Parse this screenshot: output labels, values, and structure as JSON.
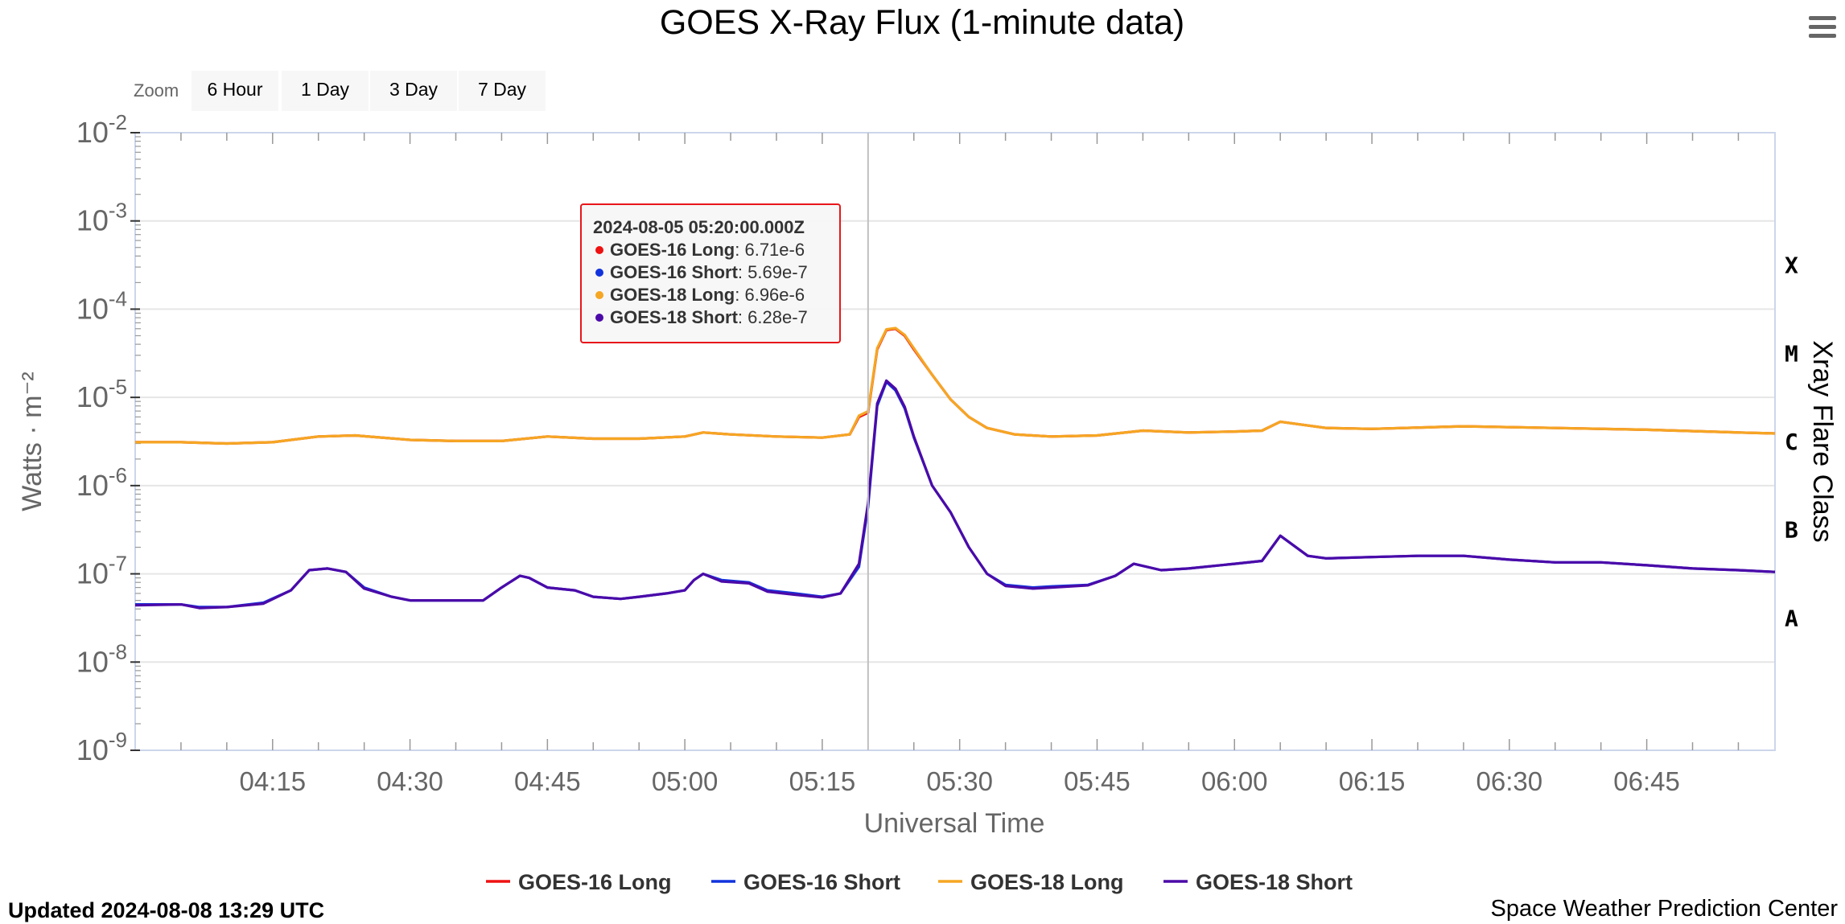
{
  "chart_data": {
    "type": "line",
    "title": "GOES X-Ray Flux (1-minute data)",
    "xlabel": "Universal Time",
    "ylabel": "Watts · m⁻²",
    "y2label": "Xray Flare Class",
    "yscale": "log",
    "ylim": [
      1e-09,
      0.01
    ],
    "xlim": [
      "04:00",
      "06:59"
    ],
    "x_ticks": [
      "04:15",
      "04:30",
      "04:45",
      "05:00",
      "05:15",
      "05:30",
      "05:45",
      "06:00",
      "06:15",
      "06:30",
      "06:45"
    ],
    "y_ticks": [
      {
        "base": "10",
        "exp": "-2"
      },
      {
        "base": "10",
        "exp": "-3"
      },
      {
        "base": "10",
        "exp": "-4"
      },
      {
        "base": "10",
        "exp": "-5"
      },
      {
        "base": "10",
        "exp": "-6"
      },
      {
        "base": "10",
        "exp": "-7"
      },
      {
        "base": "10",
        "exp": "-8"
      },
      {
        "base": "10",
        "exp": "-9"
      }
    ],
    "flare_classes": [
      {
        "label": "X",
        "value": 0.0001
      },
      {
        "label": "M",
        "value": 1e-05
      },
      {
        "label": "C",
        "value": 1e-06
      },
      {
        "label": "B",
        "value": 1e-07
      },
      {
        "label": "A",
        "value": 1e-08
      }
    ],
    "grid": true,
    "legend_position": "bottom-center",
    "series": [
      {
        "name": "GOES-16 Long",
        "color": "#ee1111",
        "points": [
          [
            "04:00",
            3.1e-06
          ],
          [
            "04:05",
            3.1e-06
          ],
          [
            "04:10",
            3e-06
          ],
          [
            "04:15",
            3.1e-06
          ],
          [
            "04:20",
            3.6e-06
          ],
          [
            "04:24",
            3.7e-06
          ],
          [
            "04:30",
            3.3e-06
          ],
          [
            "04:35",
            3.2e-06
          ],
          [
            "04:40",
            3.2e-06
          ],
          [
            "04:45",
            3.6e-06
          ],
          [
            "04:50",
            3.4e-06
          ],
          [
            "04:55",
            3.4e-06
          ],
          [
            "05:00",
            3.6e-06
          ],
          [
            "05:02",
            4e-06
          ],
          [
            "05:05",
            3.8e-06
          ],
          [
            "05:10",
            3.6e-06
          ],
          [
            "05:15",
            3.5e-06
          ],
          [
            "05:18",
            3.8e-06
          ],
          [
            "05:19",
            6e-06
          ],
          [
            "05:20",
            6.71e-06
          ],
          [
            "05:21",
            3.5e-05
          ],
          [
            "05:22",
            5.8e-05
          ],
          [
            "05:23",
            6e-05
          ],
          [
            "05:24",
            5e-05
          ],
          [
            "05:25",
            3.5e-05
          ],
          [
            "05:27",
            1.8e-05
          ],
          [
            "05:29",
            9.5e-06
          ],
          [
            "05:31",
            6e-06
          ],
          [
            "05:33",
            4.5e-06
          ],
          [
            "05:36",
            3.8e-06
          ],
          [
            "05:40",
            3.6e-06
          ],
          [
            "05:45",
            3.7e-06
          ],
          [
            "05:50",
            4.2e-06
          ],
          [
            "05:55",
            4e-06
          ],
          [
            "06:00",
            4.1e-06
          ],
          [
            "06:03",
            4.2e-06
          ],
          [
            "06:05",
            5.3e-06
          ],
          [
            "06:10",
            4.5e-06
          ],
          [
            "06:15",
            4.4e-06
          ],
          [
            "06:25",
            4.7e-06
          ],
          [
            "06:35",
            4.5e-06
          ],
          [
            "06:45",
            4.3e-06
          ],
          [
            "06:55",
            4e-06
          ],
          [
            "06:59",
            3.9e-06
          ]
        ]
      },
      {
        "name": "GOES-16 Short",
        "color": "#1133dd",
        "points": [
          [
            "04:00",
            4.5e-08
          ],
          [
            "04:05",
            4.5e-08
          ],
          [
            "04:07",
            4.2e-08
          ],
          [
            "04:10",
            4.2e-08
          ],
          [
            "04:14",
            4.7e-08
          ],
          [
            "04:17",
            6.5e-08
          ],
          [
            "04:19",
            1.1e-07
          ],
          [
            "04:21",
            1.15e-07
          ],
          [
            "04:23",
            1.05e-07
          ],
          [
            "04:25",
            7e-08
          ],
          [
            "04:28",
            5.5e-08
          ],
          [
            "04:30",
            5e-08
          ],
          [
            "04:35",
            5e-08
          ],
          [
            "04:38",
            5e-08
          ],
          [
            "04:40",
            7e-08
          ],
          [
            "04:42",
            9.5e-08
          ],
          [
            "04:43",
            9e-08
          ],
          [
            "04:45",
            7e-08
          ],
          [
            "04:48",
            6.5e-08
          ],
          [
            "04:50",
            5.5e-08
          ],
          [
            "04:53",
            5.2e-08
          ],
          [
            "04:55",
            5.5e-08
          ],
          [
            "04:58",
            6e-08
          ],
          [
            "05:00",
            6.5e-08
          ],
          [
            "05:01",
            8.5e-08
          ],
          [
            "05:02",
            1e-07
          ],
          [
            "05:04",
            8.5e-08
          ],
          [
            "05:07",
            8e-08
          ],
          [
            "05:09",
            6.5e-08
          ],
          [
            "05:12",
            6e-08
          ],
          [
            "05:15",
            5.5e-08
          ],
          [
            "05:17",
            6e-08
          ],
          [
            "05:19",
            1.2e-07
          ],
          [
            "05:20",
            5.69e-07
          ],
          [
            "05:21",
            8e-06
          ],
          [
            "05:22",
            1.5e-05
          ],
          [
            "05:23",
            1.2e-05
          ],
          [
            "05:24",
            7.5e-06
          ],
          [
            "05:25",
            3.5e-06
          ],
          [
            "05:27",
            1e-06
          ],
          [
            "05:29",
            5e-07
          ],
          [
            "05:31",
            2e-07
          ],
          [
            "05:33",
            1e-07
          ],
          [
            "05:35",
            7.5e-08
          ],
          [
            "05:38",
            7e-08
          ],
          [
            "05:40",
            7.2e-08
          ],
          [
            "05:44",
            7.5e-08
          ],
          [
            "05:47",
            9.5e-08
          ],
          [
            "05:49",
            1.3e-07
          ],
          [
            "05:52",
            1.1e-07
          ],
          [
            "05:55",
            1.15e-07
          ],
          [
            "06:00",
            1.3e-07
          ],
          [
            "06:03",
            1.4e-07
          ],
          [
            "06:05",
            2.7e-07
          ],
          [
            "06:08",
            1.6e-07
          ],
          [
            "06:10",
            1.5e-07
          ],
          [
            "06:15",
            1.55e-07
          ],
          [
            "06:20",
            1.6e-07
          ],
          [
            "06:25",
            1.6e-07
          ],
          [
            "06:30",
            1.45e-07
          ],
          [
            "06:35",
            1.35e-07
          ],
          [
            "06:40",
            1.35e-07
          ],
          [
            "06:45",
            1.25e-07
          ],
          [
            "06:50",
            1.15e-07
          ],
          [
            "06:55",
            1.1e-07
          ],
          [
            "06:59",
            1.05e-07
          ]
        ]
      },
      {
        "name": "GOES-18 Long",
        "color": "#f5a623",
        "points": [
          [
            "04:00",
            3.1e-06
          ],
          [
            "04:05",
            3.1e-06
          ],
          [
            "04:10",
            3e-06
          ],
          [
            "04:15",
            3.1e-06
          ],
          [
            "04:20",
            3.6e-06
          ],
          [
            "04:24",
            3.7e-06
          ],
          [
            "04:30",
            3.3e-06
          ],
          [
            "04:35",
            3.2e-06
          ],
          [
            "04:40",
            3.2e-06
          ],
          [
            "04:45",
            3.6e-06
          ],
          [
            "04:50",
            3.4e-06
          ],
          [
            "04:55",
            3.4e-06
          ],
          [
            "05:00",
            3.6e-06
          ],
          [
            "05:02",
            4e-06
          ],
          [
            "05:05",
            3.8e-06
          ],
          [
            "05:10",
            3.6e-06
          ],
          [
            "05:15",
            3.5e-06
          ],
          [
            "05:18",
            3.8e-06
          ],
          [
            "05:19",
            6.2e-06
          ],
          [
            "05:20",
            6.96e-06
          ],
          [
            "05:21",
            3.6e-05
          ],
          [
            "05:22",
            5.9e-05
          ],
          [
            "05:23",
            6.1e-05
          ],
          [
            "05:24",
            5.1e-05
          ],
          [
            "05:25",
            3.6e-05
          ],
          [
            "05:27",
            1.8e-05
          ],
          [
            "05:29",
            9.5e-06
          ],
          [
            "05:31",
            6e-06
          ],
          [
            "05:33",
            4.5e-06
          ],
          [
            "05:36",
            3.8e-06
          ],
          [
            "05:40",
            3.6e-06
          ],
          [
            "05:45",
            3.7e-06
          ],
          [
            "05:50",
            4.2e-06
          ],
          [
            "05:55",
            4e-06
          ],
          [
            "06:00",
            4.1e-06
          ],
          [
            "06:03",
            4.2e-06
          ],
          [
            "06:05",
            5.3e-06
          ],
          [
            "06:10",
            4.5e-06
          ],
          [
            "06:15",
            4.4e-06
          ],
          [
            "06:25",
            4.7e-06
          ],
          [
            "06:35",
            4.5e-06
          ],
          [
            "06:45",
            4.3e-06
          ],
          [
            "06:55",
            4e-06
          ],
          [
            "06:59",
            3.9e-06
          ]
        ]
      },
      {
        "name": "GOES-18 Short",
        "color": "#4b0aa8",
        "points": [
          [
            "04:00",
            4.4e-08
          ],
          [
            "04:05",
            4.5e-08
          ],
          [
            "04:07",
            4.1e-08
          ],
          [
            "04:10",
            4.2e-08
          ],
          [
            "04:14",
            4.6e-08
          ],
          [
            "04:17",
            6.5e-08
          ],
          [
            "04:19",
            1.1e-07
          ],
          [
            "04:21",
            1.15e-07
          ],
          [
            "04:23",
            1.05e-07
          ],
          [
            "04:25",
            6.8e-08
          ],
          [
            "04:28",
            5.5e-08
          ],
          [
            "04:30",
            5e-08
          ],
          [
            "04:35",
            5e-08
          ],
          [
            "04:38",
            5e-08
          ],
          [
            "04:40",
            7e-08
          ],
          [
            "04:42",
            9.5e-08
          ],
          [
            "04:43",
            9e-08
          ],
          [
            "04:45",
            7e-08
          ],
          [
            "04:48",
            6.5e-08
          ],
          [
            "04:50",
            5.5e-08
          ],
          [
            "04:53",
            5.2e-08
          ],
          [
            "04:55",
            5.5e-08
          ],
          [
            "04:58",
            6e-08
          ],
          [
            "05:00",
            6.5e-08
          ],
          [
            "05:01",
            8.5e-08
          ],
          [
            "05:02",
            1e-07
          ],
          [
            "05:04",
            8.2e-08
          ],
          [
            "05:07",
            7.8e-08
          ],
          [
            "05:09",
            6.3e-08
          ],
          [
            "05:12",
            5.8e-08
          ],
          [
            "05:15",
            5.4e-08
          ],
          [
            "05:17",
            6e-08
          ],
          [
            "05:19",
            1.3e-07
          ],
          [
            "05:20",
            6.28e-07
          ],
          [
            "05:21",
            8.5e-06
          ],
          [
            "05:22",
            1.55e-05
          ],
          [
            "05:23",
            1.25e-05
          ],
          [
            "05:24",
            7.8e-06
          ],
          [
            "05:25",
            3.6e-06
          ],
          [
            "05:27",
            1e-06
          ],
          [
            "05:29",
            5e-07
          ],
          [
            "05:31",
            2e-07
          ],
          [
            "05:33",
            1e-07
          ],
          [
            "05:35",
            7.3e-08
          ],
          [
            "05:38",
            6.8e-08
          ],
          [
            "05:40",
            7e-08
          ],
          [
            "05:44",
            7.4e-08
          ],
          [
            "05:47",
            9.5e-08
          ],
          [
            "05:49",
            1.3e-07
          ],
          [
            "05:52",
            1.1e-07
          ],
          [
            "05:55",
            1.15e-07
          ],
          [
            "06:00",
            1.3e-07
          ],
          [
            "06:03",
            1.4e-07
          ],
          [
            "06:05",
            2.7e-07
          ],
          [
            "06:08",
            1.6e-07
          ],
          [
            "06:10",
            1.5e-07
          ],
          [
            "06:15",
            1.55e-07
          ],
          [
            "06:20",
            1.6e-07
          ],
          [
            "06:25",
            1.6e-07
          ],
          [
            "06:30",
            1.45e-07
          ],
          [
            "06:35",
            1.35e-07
          ],
          [
            "06:40",
            1.35e-07
          ],
          [
            "06:45",
            1.25e-07
          ],
          [
            "06:50",
            1.15e-07
          ],
          [
            "06:55",
            1.1e-07
          ],
          [
            "06:59",
            1.05e-07
          ]
        ]
      }
    ],
    "tooltip": {
      "time": "05:20",
      "title": "2024-08-05 05:20:00.000Z",
      "rows": [
        {
          "name": "GOES-16 Long",
          "value": "6.71e-6",
          "color": "#ee1111"
        },
        {
          "name": "GOES-16 Short",
          "value": "5.69e-7",
          "color": "#1133dd"
        },
        {
          "name": "GOES-18 Long",
          "value": "6.96e-6",
          "color": "#f5a623"
        },
        {
          "name": "GOES-18 Short",
          "value": "6.28e-7",
          "color": "#4b0aa8"
        }
      ]
    }
  },
  "zoom": {
    "label": "Zoom",
    "buttons": [
      "6 Hour",
      "1 Day",
      "3 Day",
      "7 Day"
    ]
  },
  "menu_icon": "hamburger-menu-icon",
  "footer": {
    "updated": "Updated 2024-08-08 13:29 UTC",
    "credit": "Space Weather Prediction Center"
  }
}
